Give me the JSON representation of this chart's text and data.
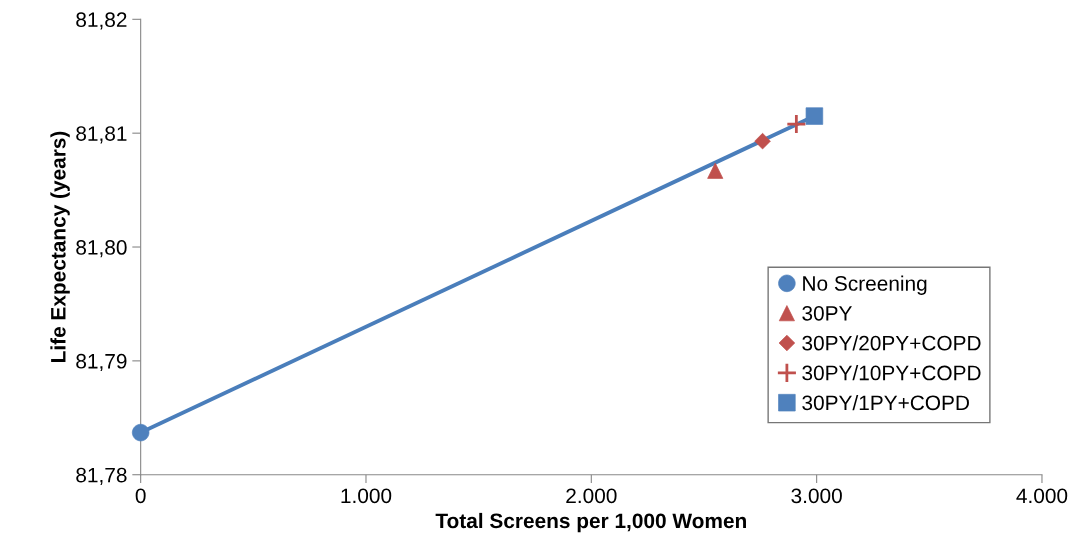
{
  "chart_data": {
    "type": "scatter",
    "xlabel": "Total Screens per 1,000 Women",
    "ylabel": "Life Expectancy (years)",
    "xlim": [
      0,
      4000
    ],
    "ylim": [
      81.78,
      81.82
    ],
    "xticks": [
      {
        "value": 0,
        "label": "0"
      },
      {
        "value": 1000,
        "label": "1.000"
      },
      {
        "value": 2000,
        "label": "2.000"
      },
      {
        "value": 3000,
        "label": "3.000"
      },
      {
        "value": 4000,
        "label": "4.000"
      }
    ],
    "yticks": [
      {
        "value": 81.78,
        "label": "81,78"
      },
      {
        "value": 81.79,
        "label": "81,79"
      },
      {
        "value": 81.8,
        "label": "81,80"
      },
      {
        "value": 81.81,
        "label": "81,81"
      },
      {
        "value": 81.82,
        "label": "81,82"
      }
    ],
    "grid": false,
    "legend": "bottom right",
    "series": [
      {
        "type": "line",
        "color": "#4a7ebb",
        "x": [
          0,
          2990
        ],
        "values": [
          81.7837,
          81.8115
        ],
        "marker": "none",
        "line_style": "solid"
      },
      {
        "name": "No Screening",
        "color": "#4f81bd",
        "x": [
          0
        ],
        "values": [
          81.7837
        ],
        "marker": "circle"
      },
      {
        "name": "30PY",
        "color": "#c0504d",
        "x": [
          2550
        ],
        "values": [
          81.8067
        ],
        "marker": "triangle"
      },
      {
        "name": "30PY/20PY+COPD",
        "color": "#c0504d",
        "x": [
          2760
        ],
        "values": [
          81.8093
        ],
        "marker": "diamond"
      },
      {
        "name": "30PY/10PY+COPD",
        "color": "#c0504d",
        "x": [
          2910
        ],
        "values": [
          81.8108
        ],
        "marker": "cross"
      },
      {
        "name": "30PY/1PY+COPD",
        "color": "#4f81bd",
        "x": [
          2990
        ],
        "values": [
          81.8115
        ],
        "marker": "square"
      }
    ]
  }
}
